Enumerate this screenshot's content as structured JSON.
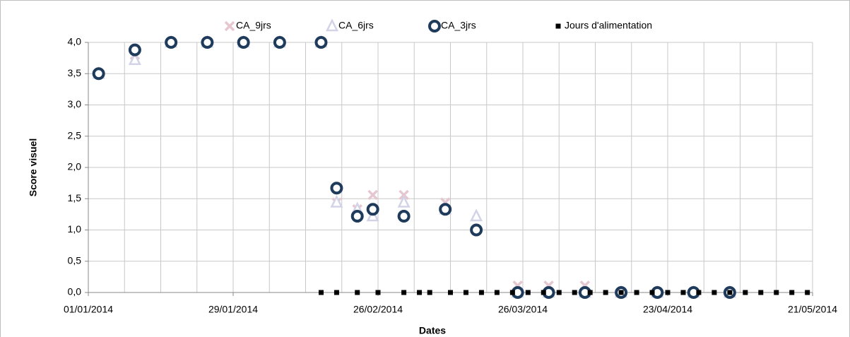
{
  "chart_data": {
    "type": "scatter",
    "xlabel": "Dates",
    "ylabel": "Score visuel",
    "xlim": [
      "2014-01-01",
      "2014-05-21"
    ],
    "xticks": [
      {
        "value": "2014-01-01",
        "label": "01/01/2014"
      },
      {
        "value": "2014-01-29",
        "label": "29/01/2014"
      },
      {
        "value": "2014-02-26",
        "label": "26/02/2014"
      },
      {
        "value": "2014-03-26",
        "label": "26/03/2014"
      },
      {
        "value": "2014-04-23",
        "label": "23/04/2014"
      },
      {
        "value": "2014-05-21",
        "label": "21/05/2014"
      }
    ],
    "xgrid": [
      "2014-01-01",
      "2014-01-08",
      "2014-01-15",
      "2014-01-22",
      "2014-01-29",
      "2014-02-05",
      "2014-02-12",
      "2014-02-19",
      "2014-02-26",
      "2014-03-05",
      "2014-03-12",
      "2014-03-19",
      "2014-03-26",
      "2014-04-02",
      "2014-04-09",
      "2014-04-16",
      "2014-04-23",
      "2014-04-30",
      "2014-05-07",
      "2014-05-14",
      "2014-05-21"
    ],
    "ylim": [
      0,
      4
    ],
    "yticks": [
      {
        "value": 0,
        "label": "0,0"
      },
      {
        "value": 0.5,
        "label": "0,5"
      },
      {
        "value": 1,
        "label": "1,0"
      },
      {
        "value": 1.5,
        "label": "1,5"
      },
      {
        "value": 2,
        "label": "2,0"
      },
      {
        "value": 2.5,
        "label": "2,5"
      },
      {
        "value": 3,
        "label": "3,0"
      },
      {
        "value": 3.5,
        "label": "3,5"
      },
      {
        "value": 4,
        "label": "4,0"
      }
    ],
    "grid": true,
    "series": [
      {
        "name": "CA_9jrs",
        "color": "#e6c6cf",
        "marker": "cross",
        "x": [
          "2014-01-03",
          "2014-01-10",
          "2014-01-17",
          "2014-01-24",
          "2014-01-31",
          "2014-02-07",
          "2014-02-15",
          "2014-02-18",
          "2014-02-22",
          "2014-02-25",
          "2014-03-03",
          "2014-03-11",
          "2014-03-17",
          "2014-03-25",
          "2014-03-31",
          "2014-04-07",
          "2014-04-14",
          "2014-04-21",
          "2014-04-28",
          "2014-05-05"
        ],
        "values": [
          3.5,
          3.8,
          4,
          4,
          4,
          4,
          4,
          1.44,
          1.33,
          1.56,
          1.56,
          1.44,
          1.0,
          0.11,
          0.11,
          0.11,
          0,
          0,
          0,
          0
        ]
      },
      {
        "name": "CA_6jrs",
        "color": "#d3d3e8",
        "marker": "triangle",
        "x": [
          "2014-01-03",
          "2014-01-10",
          "2014-01-17",
          "2014-01-24",
          "2014-01-31",
          "2014-02-07",
          "2014-02-15",
          "2014-02-18",
          "2014-02-22",
          "2014-02-25",
          "2014-03-03",
          "2014-03-11",
          "2014-03-17",
          "2014-03-25",
          "2014-03-31",
          "2014-04-07",
          "2014-04-14",
          "2014-04-21",
          "2014-04-28",
          "2014-05-05"
        ],
        "values": [
          3.5,
          3.72,
          4,
          4,
          4,
          4,
          4,
          1.44,
          1.33,
          1.22,
          1.44,
          1.33,
          1.22,
          0,
          0,
          0,
          0,
          0,
          0,
          0
        ]
      },
      {
        "name": "CA_3jrs",
        "color": "#1f3b5c",
        "marker": "circle",
        "x": [
          "2014-01-03",
          "2014-01-10",
          "2014-01-17",
          "2014-01-24",
          "2014-01-31",
          "2014-02-07",
          "2014-02-15",
          "2014-02-18",
          "2014-02-22",
          "2014-02-25",
          "2014-03-03",
          "2014-03-11",
          "2014-03-17",
          "2014-03-25",
          "2014-03-31",
          "2014-04-07",
          "2014-04-14",
          "2014-04-21",
          "2014-04-28",
          "2014-05-05"
        ],
        "values": [
          3.5,
          3.88,
          4,
          4,
          4,
          4,
          4,
          1.67,
          1.22,
          1.33,
          1.22,
          1.33,
          1.0,
          0,
          0,
          0,
          0,
          0,
          0,
          0
        ]
      },
      {
        "name": "Jours d'alimentation",
        "color": "#000000",
        "marker": "square",
        "x": [
          "2014-02-15",
          "2014-02-18",
          "2014-02-22",
          "2014-02-26",
          "2014-03-03",
          "2014-03-06",
          "2014-03-08",
          "2014-03-12",
          "2014-03-15",
          "2014-03-18",
          "2014-03-21",
          "2014-03-24",
          "2014-03-27",
          "2014-03-30",
          "2014-04-02",
          "2014-04-05",
          "2014-04-08",
          "2014-04-11",
          "2014-04-14",
          "2014-04-17",
          "2014-04-20",
          "2014-04-23",
          "2014-04-26",
          "2014-04-29",
          "2014-05-02",
          "2014-05-05",
          "2014-05-08",
          "2014-05-11",
          "2014-05-14",
          "2014-05-17",
          "2014-05-20"
        ],
        "values": [
          0,
          0,
          0,
          0,
          0,
          0,
          0,
          0,
          0,
          0,
          0,
          0,
          0,
          0,
          0,
          0,
          0,
          0,
          0,
          0,
          0,
          0,
          0,
          0,
          0,
          0,
          0,
          0,
          0,
          0,
          0
        ]
      }
    ]
  }
}
